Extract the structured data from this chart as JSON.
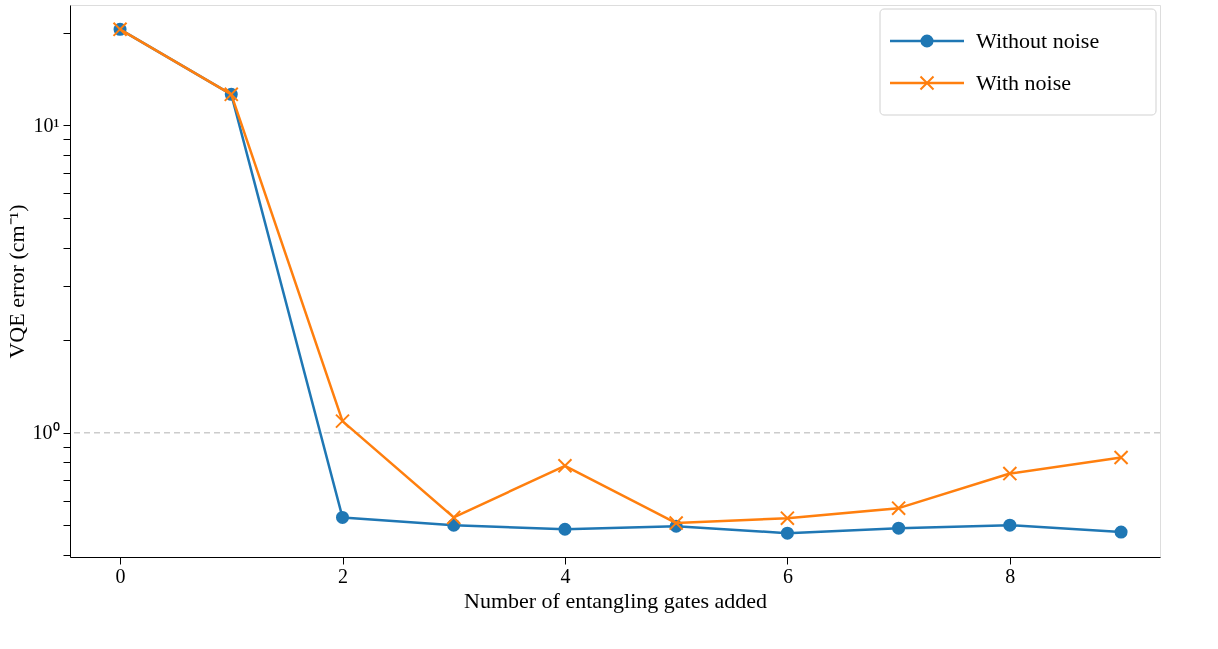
{
  "chart_data": {
    "type": "line",
    "xlabel": "Number of entangling gates added",
    "ylabel": "VQE error (cm⁻¹)",
    "x": [
      0,
      1,
      2,
      3,
      4,
      5,
      6,
      7,
      8,
      9
    ],
    "series": [
      {
        "name": "Without noise",
        "color": "#1f77b4",
        "marker": "circle",
        "values": [
          20.5,
          12.6,
          0.53,
          0.5,
          0.485,
          0.496,
          0.471,
          0.489,
          0.5,
          0.475
        ]
      },
      {
        "name": "With noise",
        "color": "#ff7f0e",
        "marker": "cross",
        "values": [
          20.5,
          12.6,
          1.09,
          0.53,
          0.78,
          0.508,
          0.527,
          0.568,
          0.736,
          0.83
        ]
      }
    ],
    "log": "y",
    "xlim": [
      -0.45,
      9.35
    ],
    "xticks": [
      0,
      2,
      4,
      6,
      8
    ],
    "ylim": [
      0.394,
      24.6
    ],
    "yticks": [
      {
        "value": 0.4,
        "label": null
      },
      {
        "value": 0.5,
        "label": null
      },
      {
        "value": 0.6,
        "label": null
      },
      {
        "value": 0.7,
        "label": null
      },
      {
        "value": 0.8,
        "label": null
      },
      {
        "value": 0.9,
        "label": null
      },
      {
        "value": 1,
        "label": "10⁰"
      },
      {
        "value": 2,
        "label": null
      },
      {
        "value": 3,
        "label": null
      },
      {
        "value": 4,
        "label": null
      },
      {
        "value": 5,
        "label": null
      },
      {
        "value": 6,
        "label": null
      },
      {
        "value": 7,
        "label": null
      },
      {
        "value": 8,
        "label": null
      },
      {
        "value": 9,
        "label": null
      },
      {
        "value": 10,
        "label": "10¹"
      },
      {
        "value": 20,
        "label": null
      }
    ],
    "ref_lines": [
      {
        "axis": "y",
        "value": 1,
        "label": null,
        "color": "#cccccc",
        "line_style": "dashed"
      }
    ],
    "grid": false,
    "legend": "top right",
    "line_style": "solid"
  }
}
